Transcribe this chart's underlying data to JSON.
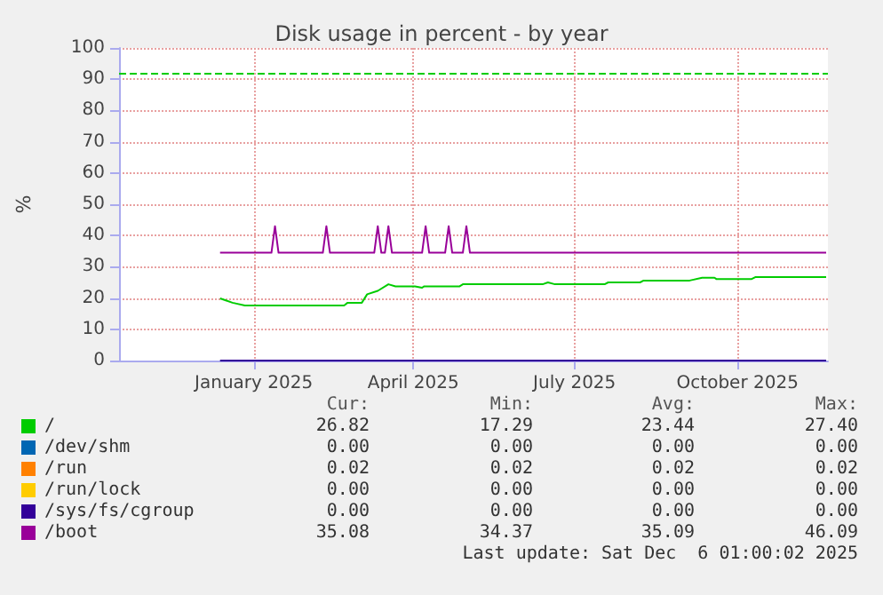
{
  "chart_data": {
    "type": "line",
    "title": "Disk usage in percent - by year",
    "ylabel": "%",
    "xlim": [
      "2024-11-01",
      "2025-12-06"
    ],
    "xticks": [
      {
        "value": "2025-01-16",
        "label": "January 2025"
      },
      {
        "value": "2025-04-16",
        "label": "April 2025"
      },
      {
        "value": "2025-07-16",
        "label": "July 2025"
      },
      {
        "value": "2025-10-16",
        "label": "October 2025"
      }
    ],
    "ylim": [
      0,
      100
    ],
    "yticks": [
      0,
      10,
      20,
      30,
      40,
      50,
      60,
      70,
      80,
      90,
      100
    ],
    "grid": true,
    "legend": "bottom",
    "marker": "none",
    "line_style": "solid",
    "ref_lines": [
      {
        "axis": "y",
        "value": 92,
        "color": "#00cc00",
        "line_style": "dashed"
      }
    ],
    "series": [
      {
        "name": "/",
        "color": "#00cc00",
        "x": [
          "2024-12-28",
          "2025-01-04",
          "2025-01-11",
          "2025-03-08",
          "2025-03-10",
          "2025-03-18",
          "2025-03-21",
          "2025-03-27",
          "2025-04-02",
          "2025-04-06",
          "2025-04-17",
          "2025-04-21",
          "2025-04-22",
          "2025-05-12",
          "2025-05-14",
          "2025-06-28",
          "2025-07-01",
          "2025-07-05",
          "2025-08-02",
          "2025-08-04",
          "2025-08-22",
          "2025-08-24",
          "2025-09-19",
          "2025-09-26",
          "2025-10-03",
          "2025-10-04",
          "2025-10-24",
          "2025-10-26",
          "2025-12-05"
        ],
        "values": [
          19.9,
          18.5,
          17.6,
          17.6,
          18.5,
          18.5,
          21.2,
          22.3,
          24.4,
          23.7,
          23.7,
          23.3,
          23.7,
          23.7,
          24.4,
          24.4,
          25.0,
          24.4,
          24.4,
          25.0,
          25.0,
          25.6,
          25.6,
          26.5,
          26.5,
          26.1,
          26.1,
          26.7,
          26.7
        ]
      },
      {
        "name": "/dev/shm",
        "color": "#0066b3"
      },
      {
        "name": "/run",
        "color": "#ff8000"
      },
      {
        "name": "/run/lock",
        "color": "#ffcc00"
      },
      {
        "name": "/sys/fs/cgroup",
        "color": "#330099",
        "x": [
          "2024-12-28",
          "2025-12-05"
        ],
        "values": [
          0,
          0
        ]
      },
      {
        "name": "/boot",
        "color": "#990099",
        "x": [
          "2024-12-28",
          "2025-01-26",
          "2025-01-28",
          "2025-01-30",
          "2025-02-24",
          "2025-02-26",
          "2025-02-28",
          "2025-03-25",
          "2025-03-27",
          "2025-03-29",
          "2025-03-31",
          "2025-04-02",
          "2025-04-04",
          "2025-04-21",
          "2025-04-23",
          "2025-04-25",
          "2025-05-04",
          "2025-05-06",
          "2025-05-08",
          "2025-05-14",
          "2025-05-16",
          "2025-05-18",
          "2025-12-05"
        ],
        "values": [
          34.5,
          34.5,
          43,
          34.5,
          34.5,
          43,
          34.5,
          34.5,
          43,
          34.5,
          34.5,
          43,
          34.5,
          34.5,
          43,
          34.5,
          34.5,
          43,
          34.5,
          34.5,
          43,
          34.5,
          34.5
        ]
      }
    ],
    "annotations": [
      "Cur:",
      "Min:",
      "Avg:",
      "Max:",
      "26.82",
      "17.29",
      "23.44",
      "27.40",
      "0.00",
      "0.00",
      "0.00",
      "0.00",
      "0.02",
      "0.02",
      "0.02",
      "0.02",
      "0.00",
      "0.00",
      "0.00",
      "0.00",
      "0.00",
      "0.00",
      "0.00",
      "0.00",
      "35.08",
      "34.37",
      "35.09",
      "46.09",
      "Last update: Sat Dec  6 01:00:02 2025"
    ]
  }
}
